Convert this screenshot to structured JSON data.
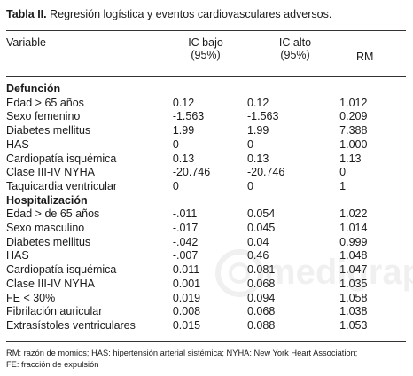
{
  "caption": {
    "label": "Tabla II.",
    "title": "Regresión logística y eventos cardiovasculares adversos."
  },
  "headers": {
    "variable": "Variable",
    "ic_bajo_1": "IC bajo",
    "ic_bajo_2": "(95%)",
    "ic_alto_1": "IC alto",
    "ic_alto_2": "(95%)",
    "rm": "RM"
  },
  "rows": [
    {
      "label": "Defunción",
      "section": true
    },
    {
      "label": "Edad > 65 años",
      "ic_bajo": "0.12",
      "ic_alto": "0.12",
      "rm": "1.012"
    },
    {
      "label": "Sexo femenino",
      "ic_bajo": "-1.563",
      "ic_alto": "-1.563",
      "rm": "0.209"
    },
    {
      "label": "Diabetes mellitus",
      "ic_bajo": "1.99",
      "ic_alto": "1.99",
      "rm": "7.388"
    },
    {
      "label": "HAS",
      "ic_bajo": "0",
      "ic_alto": "0",
      "rm": "1.000"
    },
    {
      "label": "Cardiopatía isquémica",
      "ic_bajo": "0.13",
      "ic_alto": "0.13",
      "rm": "1.13"
    },
    {
      "label": "Clase III-IV NYHA",
      "ic_bajo": "-20.746",
      "ic_alto": "-20.746",
      "rm": "0"
    },
    {
      "label": "Taquicardia ventricular",
      "ic_bajo": "0",
      "ic_alto": "0",
      "rm": "1"
    },
    {
      "label": "Hospitalización",
      "section": true
    },
    {
      "label": "Edad > de 65 años",
      "ic_bajo": "-.011",
      "ic_alto": "0.054",
      "rm": "1.022"
    },
    {
      "label": "Sexo masculino",
      "ic_bajo": "-.017",
      "ic_alto": "0.045",
      "rm": "1.014"
    },
    {
      "label": "Diabetes mellitus",
      "ic_bajo": "-.042",
      "ic_alto": "0.04",
      "rm": "0.999"
    },
    {
      "label": "HAS",
      "ic_bajo": "-.007",
      "ic_alto": "0.46",
      "rm": "1.048"
    },
    {
      "label": "Cardiopatía isquémica",
      "ic_bajo": "0.011",
      "ic_alto": "0.081",
      "rm": "1.047"
    },
    {
      "label": "Clase III-IV NYHA",
      "ic_bajo": "0.001",
      "ic_alto": "0.068",
      "rm": "1.035"
    },
    {
      "label": "FE < 30%",
      "ic_bajo": "0.019",
      "ic_alto": "0.094",
      "rm": "1.058"
    },
    {
      "label": "Fibrilación auricular",
      "ic_bajo": "0.008",
      "ic_alto": "0.068",
      "rm": "1.038"
    },
    {
      "label": "Extrasístoles ventriculares",
      "ic_bajo": "0.015",
      "ic_alto": "0.088",
      "rm": "1.053"
    }
  ],
  "footnote": {
    "line1": "RM: razón de momios; HAS: hipertensión arterial sistémica; NYHA: New York Heart Association;",
    "line2": "FE: fracción de expulsión"
  },
  "watermark": {
    "text": "medigraph",
    "icon": "medigraphic-logo-icon"
  }
}
